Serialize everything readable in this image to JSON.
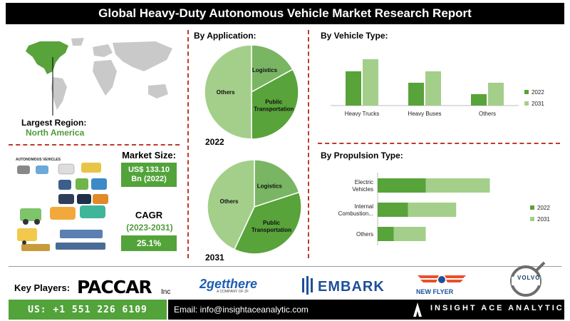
{
  "title": "Global Heavy-Duty Autonomous Vehicle Market Research Report",
  "region": {
    "label": "Largest Region:",
    "value": "North America"
  },
  "market_size": {
    "label": "Market Size:",
    "value_line1": "US$ 133.10",
    "value_line2": "Bn (2022)"
  },
  "cagr": {
    "label": "CAGR",
    "period": "(2023-2031)",
    "value": "25.1%"
  },
  "illustration_caption": "AUTONOMOUS VEHICLES",
  "key_players": {
    "label": "Key Players:",
    "logos": [
      "PACCAR",
      "Inc",
      "2getthere",
      "A COMPANY OF ZF",
      "EMBARK",
      "NEW FLYER",
      "VOLVO"
    ]
  },
  "footer": {
    "phone": "US: +1 551 226 6109",
    "email": "Email: info@insightaceanalytic.com",
    "brand": "INSIGHT ACE ANALYTIC"
  },
  "colors": {
    "dark_green": "#58a33a",
    "light_green": "#a3cf8a",
    "mid_green": "#7ab563",
    "accent": "#52a33a",
    "divider": "#c0392b"
  },
  "chart_data": [
    {
      "type": "pie",
      "title": "By Application:",
      "year": "2022",
      "labels": [
        "Logistics",
        "Public Transportation",
        "Others"
      ],
      "values": [
        17,
        33,
        50
      ]
    },
    {
      "type": "pie",
      "year": "2031",
      "labels": [
        "Logistics",
        "Public Transportation",
        "Others"
      ],
      "values": [
        20,
        37,
        43
      ]
    },
    {
      "type": "bar",
      "title": "By Vehicle Type:",
      "categories": [
        "Heavy Trucks",
        "Heavy Buses",
        "Others"
      ],
      "series": [
        {
          "name": "2022",
          "values": [
            48,
            32,
            16
          ]
        },
        {
          "name": "2031",
          "values": [
            65,
            48,
            32
          ]
        }
      ],
      "ylim": [
        0,
        70
      ],
      "legend": "right"
    },
    {
      "type": "bar",
      "orientation": "horizontal",
      "stacked": true,
      "title": "By Propulsion Type:",
      "categories": [
        "Electric Vehicles",
        "Internal Combustion...",
        "Others"
      ],
      "series": [
        {
          "name": "2022",
          "values": [
            30,
            19,
            10
          ]
        },
        {
          "name": "2031",
          "values": [
            40,
            30,
            20
          ]
        }
      ],
      "xlim": [
        0,
        80
      ],
      "legend": "right"
    }
  ]
}
